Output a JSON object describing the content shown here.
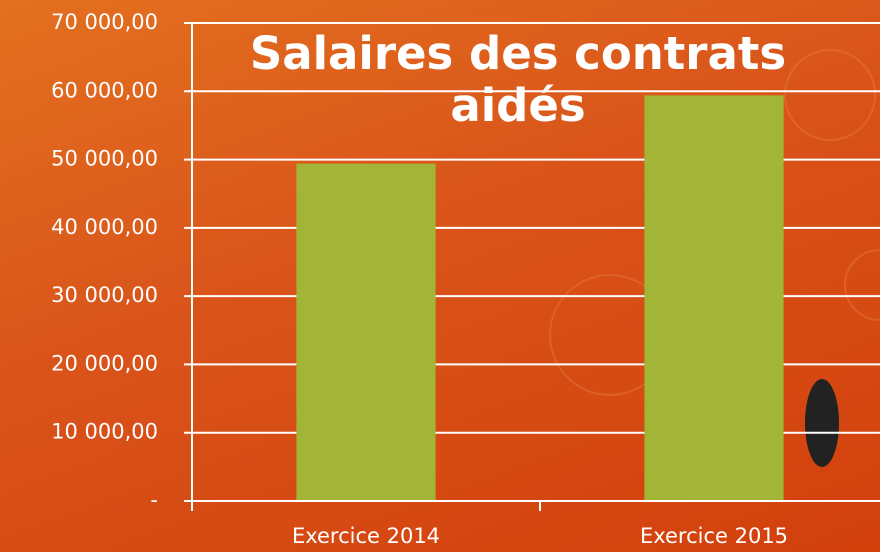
{
  "chart_data": {
    "type": "bar",
    "title": "Salaires des contrats aidés",
    "categories": [
      "Exercice 2014",
      "Exercice 2015"
    ],
    "values": [
      49400,
      59400
    ],
    "color": "#a2b536",
    "ylim": [
      0,
      70000
    ],
    "yticks": [
      {
        "value": 0,
        "label": "-"
      },
      {
        "value": 10000,
        "label": "10 000,00"
      },
      {
        "value": 20000,
        "label": "20 000,00"
      },
      {
        "value": 30000,
        "label": "30 000,00"
      },
      {
        "value": 40000,
        "label": "40 000,00"
      },
      {
        "value": 50000,
        "label": "50 000,00"
      },
      {
        "value": 60000,
        "label": "60 000,00"
      },
      {
        "value": 70000,
        "label": "70 000,00"
      }
    ],
    "grid": true
  }
}
